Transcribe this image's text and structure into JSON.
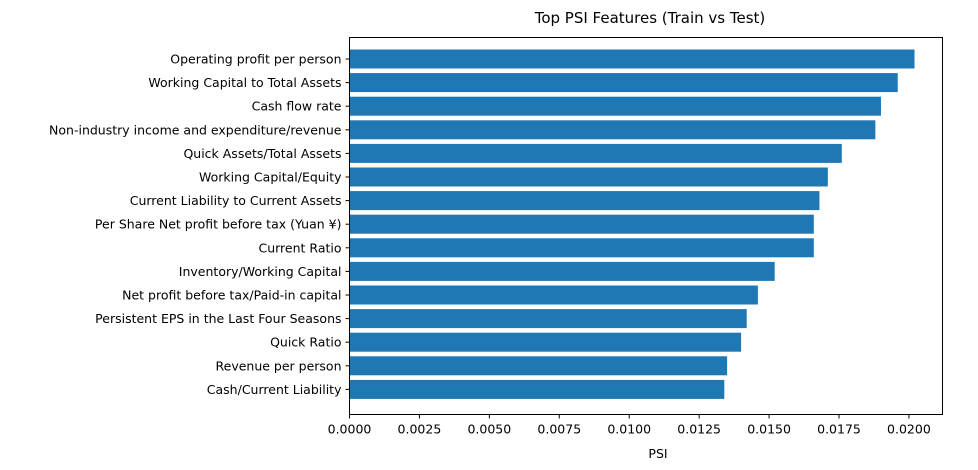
{
  "chart_data": {
    "type": "bar",
    "orientation": "horizontal",
    "title": "Top PSI Features (Train vs Test)",
    "xlabel": "PSI",
    "ylabel": "",
    "xlim": [
      0,
      0.0212
    ],
    "xticks": [
      0.0,
      0.0025,
      0.005,
      0.0075,
      0.01,
      0.0125,
      0.015,
      0.0175,
      0.02
    ],
    "xtick_labels": [
      "0.0000",
      "0.0025",
      "0.0050",
      "0.0075",
      "0.0100",
      "0.0125",
      "0.0150",
      "0.0175",
      "0.0200"
    ],
    "grid": false,
    "bar_color": "#1f77b4",
    "categories": [
      "Operating profit per person",
      "Working Capital to Total Assets",
      "Cash flow rate",
      "Non-industry income and expenditure/revenue",
      "Quick Assets/Total Assets",
      "Working Capital/Equity",
      "Current Liability to Current Assets",
      "Per Share Net profit before tax (Yuan ¥)",
      "Current Ratio",
      "Inventory/Working Capital",
      "Net profit before tax/Paid-in capital",
      "Persistent EPS in the Last Four Seasons",
      "Quick Ratio",
      "Revenue per person",
      "Cash/Current Liability"
    ],
    "values": [
      0.0202,
      0.0196,
      0.019,
      0.0188,
      0.0176,
      0.0171,
      0.0168,
      0.0166,
      0.0166,
      0.0152,
      0.0146,
      0.0142,
      0.014,
      0.0135,
      0.0134
    ]
  }
}
